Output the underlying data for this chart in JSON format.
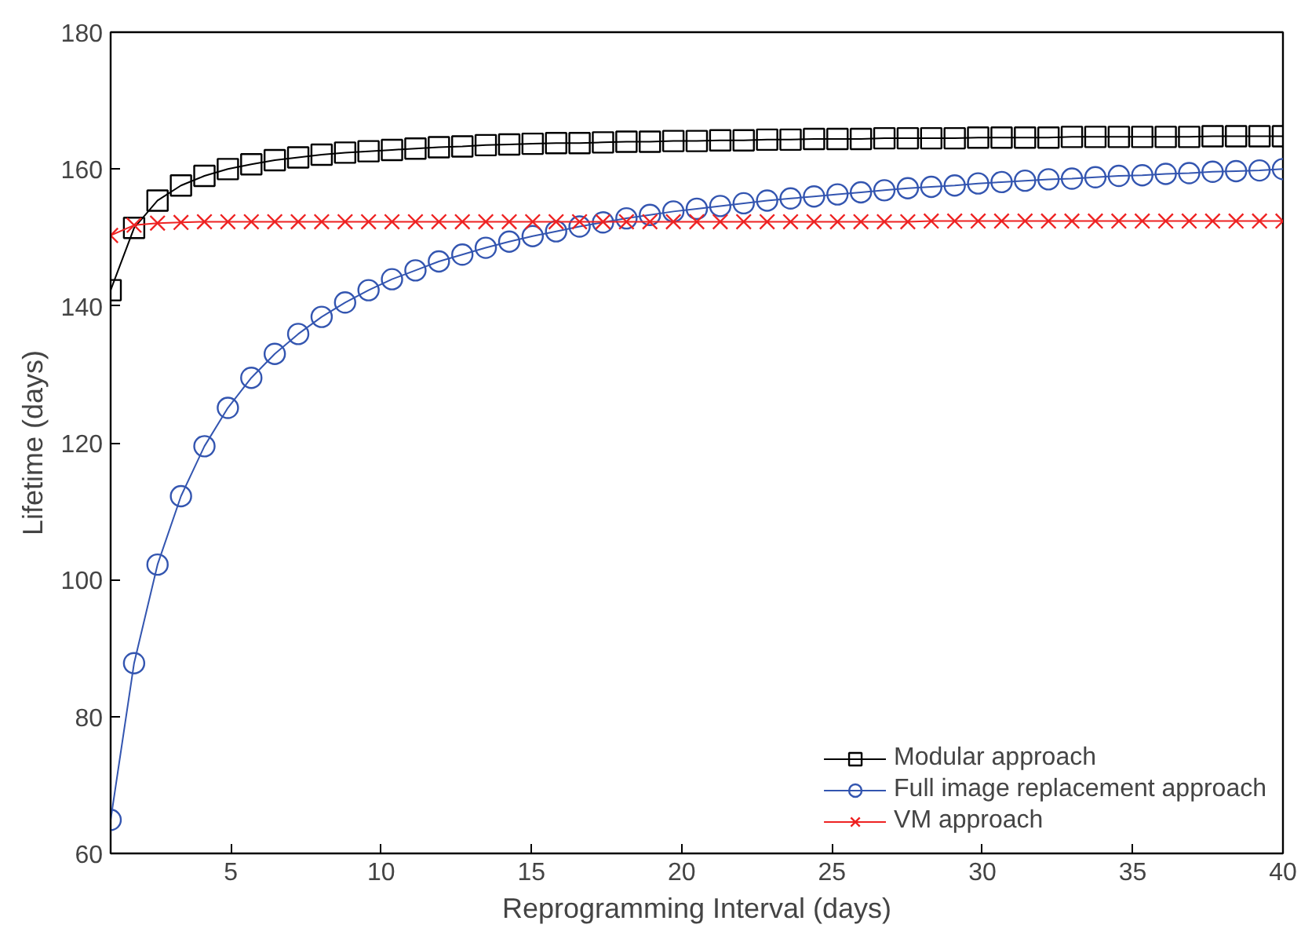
{
  "chart_data": {
    "type": "line",
    "xlabel": "Reprogramming Interval (days)",
    "ylabel": "Lifetime (days)",
    "x": [
      1,
      1.78,
      2.56,
      3.34,
      4.12,
      4.9,
      5.68,
      6.46,
      7.24,
      8.02,
      8.8,
      9.58,
      10.36,
      11.14,
      11.92,
      12.7,
      13.48,
      14.26,
      15.04,
      15.82,
      16.6,
      17.38,
      18.16,
      18.94,
      19.72,
      20.5,
      21.28,
      22.06,
      22.84,
      23.62,
      24.4,
      25.18,
      25.96,
      26.74,
      27.52,
      28.3,
      29.08,
      29.86,
      30.64,
      31.42,
      32.2,
      32.98,
      33.76,
      34.54,
      35.32,
      36.1,
      36.88,
      37.66,
      38.44,
      39.22,
      40
    ],
    "series": [
      {
        "name": "Modular approach",
        "color": "#000000",
        "marker": "square",
        "values": [
          142.3,
          151.4,
          155.4,
          157.6,
          159.0,
          160.0,
          160.7,
          161.3,
          161.7,
          162.1,
          162.4,
          162.6,
          162.8,
          163.0,
          163.2,
          163.3,
          163.5,
          163.6,
          163.7,
          163.8,
          163.8,
          163.9,
          164.0,
          164.0,
          164.1,
          164.1,
          164.2,
          164.2,
          164.3,
          164.3,
          164.4,
          164.4,
          164.4,
          164.5,
          164.5,
          164.5,
          164.5,
          164.6,
          164.6,
          164.6,
          164.6,
          164.7,
          164.7,
          164.7,
          164.7,
          164.7,
          164.7,
          164.8,
          164.8,
          164.8,
          164.8
        ]
      },
      {
        "name": "Full image replacement approach",
        "color": "#3355b0",
        "marker": "circle",
        "values": [
          64.9,
          87.8,
          102.2,
          112.2,
          119.5,
          125.1,
          129.5,
          133.0,
          135.9,
          138.4,
          140.5,
          142.3,
          143.9,
          145.2,
          146.5,
          147.5,
          148.5,
          149.4,
          150.2,
          150.9,
          151.6,
          152.2,
          152.8,
          153.3,
          153.8,
          154.2,
          154.6,
          155.0,
          155.4,
          155.7,
          156.0,
          156.3,
          156.6,
          156.9,
          157.2,
          157.4,
          157.6,
          157.9,
          158.1,
          158.3,
          158.5,
          158.6,
          158.8,
          159.0,
          159.1,
          159.3,
          159.4,
          159.6,
          159.7,
          159.8,
          160.0
        ]
      },
      {
        "name": "VM approach",
        "color": "#ee2222",
        "marker": "cross",
        "values": [
          150.3,
          151.8,
          152.1,
          152.2,
          152.3,
          152.3,
          152.3,
          152.3,
          152.3,
          152.3,
          152.3,
          152.3,
          152.3,
          152.3,
          152.3,
          152.3,
          152.3,
          152.3,
          152.3,
          152.3,
          152.3,
          152.3,
          152.3,
          152.3,
          152.3,
          152.3,
          152.3,
          152.3,
          152.3,
          152.3,
          152.3,
          152.3,
          152.3,
          152.3,
          152.3,
          152.4,
          152.4,
          152.4,
          152.4,
          152.4,
          152.4,
          152.4,
          152.4,
          152.4,
          152.4,
          152.4,
          152.4,
          152.4,
          152.4,
          152.4,
          152.4
        ]
      }
    ],
    "xlim": [
      1,
      40
    ],
    "xticks": [
      5,
      10,
      15,
      20,
      25,
      30,
      35,
      40
    ],
    "ylim": [
      60,
      180
    ],
    "yticks": [
      60,
      80,
      100,
      120,
      140,
      160,
      180
    ],
    "grid": false,
    "legend": "bottom right",
    "line_style": "solid"
  }
}
